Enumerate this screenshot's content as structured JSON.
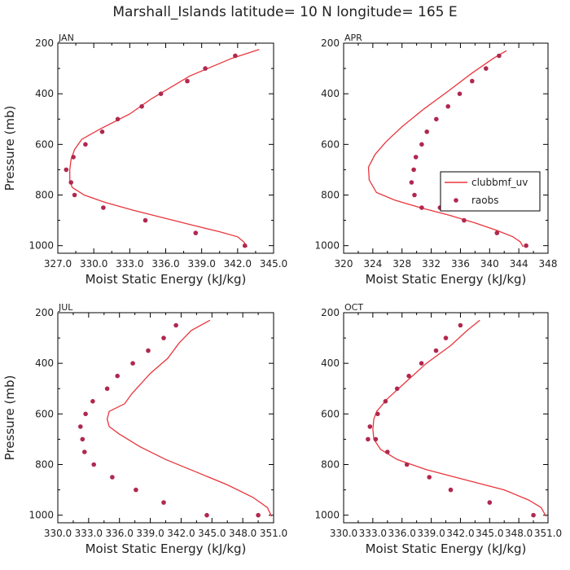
{
  "title": "Marshall_Islands  latitude= 10 N longitude= 165 E",
  "colors": {
    "line": "#e8363d",
    "marker": "#b0284f",
    "axis": "#000000"
  },
  "legend": {
    "line_label": "clubbmf_uv",
    "marker_label": "raobs",
    "placement": "center-right of APR panel"
  },
  "chart_data": [
    {
      "type": "line",
      "panel": "JAN",
      "xlabel": "Moist Static Energy (kJ/kg)",
      "ylabel": "Pressure (mb)",
      "xlim": [
        327.0,
        345.0
      ],
      "ylim": [
        1030,
        200
      ],
      "xticks": [
        "327.0",
        "330.0",
        "333.0",
        "336.0",
        "339.0",
        "342.0",
        "345.0"
      ],
      "xtick_values": [
        327,
        330,
        333,
        336,
        339,
        342,
        345
      ],
      "yticks": [
        200,
        400,
        600,
        800,
        1000
      ],
      "series": [
        {
          "name": "clubbmf_uv",
          "kind": "line",
          "x": [
            343.8,
            341.5,
            338.0,
            334.8,
            333.0,
            330.5,
            329.0,
            328.4,
            328.1,
            328.0,
            328.0,
            328.2,
            329.2,
            331.0,
            333.3,
            335.8,
            338.3,
            340.5,
            342.0,
            342.5,
            342.8
          ],
          "y": [
            225,
            260,
            330,
            420,
            480,
            540,
            580,
            620,
            660,
            700,
            740,
            770,
            800,
            830,
            860,
            890,
            920,
            945,
            965,
            985,
            1005
          ]
        },
        {
          "name": "raobs",
          "kind": "scatter",
          "x": [
            341.8,
            339.3,
            337.8,
            335.6,
            334.0,
            332.0,
            330.7,
            329.3,
            328.3,
            327.7,
            328.1,
            328.4,
            330.8,
            334.3,
            338.5,
            342.6
          ],
          "y": [
            250,
            300,
            350,
            400,
            450,
            500,
            550,
            600,
            650,
            700,
            750,
            800,
            850,
            900,
            950,
            1000
          ]
        }
      ]
    },
    {
      "type": "line",
      "panel": "APR",
      "xlabel": "Moist Static Energy (kJ/kg)",
      "ylabel": "",
      "xlim": [
        320,
        348
      ],
      "ylim": [
        1030,
        200
      ],
      "xticks": [
        "320",
        "324",
        "328",
        "332",
        "336",
        "340",
        "344",
        "348"
      ],
      "xtick_values": [
        320,
        324,
        328,
        332,
        336,
        340,
        344,
        348
      ],
      "yticks": [
        200,
        400,
        600,
        800,
        1000
      ],
      "series": [
        {
          "name": "clubbmf_uv",
          "kind": "line",
          "x": [
            342.3,
            340.5,
            337.5,
            334.3,
            331.0,
            328.0,
            325.8,
            324.3,
            323.4,
            323.5,
            324.5,
            327.0,
            330.5,
            334.5,
            338.0,
            341.0,
            343.2,
            344.2,
            344.6
          ],
          "y": [
            230,
            260,
            320,
            390,
            460,
            530,
            590,
            640,
            690,
            740,
            790,
            820,
            850,
            880,
            910,
            940,
            965,
            985,
            1005
          ]
        },
        {
          "name": "raobs",
          "kind": "scatter",
          "x": [
            341.3,
            339.5,
            337.6,
            335.9,
            334.3,
            332.7,
            331.4,
            330.7,
            329.9,
            329.6,
            329.3,
            329.7,
            330.7,
            333.2,
            336.5,
            341.0,
            345.0
          ],
          "y": [
            250,
            300,
            350,
            400,
            450,
            500,
            550,
            600,
            650,
            700,
            750,
            800,
            850,
            850,
            900,
            950,
            1000
          ]
        }
      ]
    },
    {
      "type": "line",
      "panel": "JUL",
      "xlabel": "Moist Static Energy (kJ/kg)",
      "ylabel": "Pressure (mb)",
      "xlim": [
        330.0,
        351.0
      ],
      "ylim": [
        1030,
        200
      ],
      "xticks": [
        "330.0",
        "333.0",
        "336.0",
        "339.0",
        "342.0",
        "345.0",
        "348.0",
        "351.0"
      ],
      "xtick_values": [
        330,
        333,
        336,
        339,
        342,
        345,
        348,
        351
      ],
      "yticks": [
        200,
        400,
        600,
        800,
        1000
      ],
      "series": [
        {
          "name": "clubbmf_uv",
          "kind": "line",
          "x": [
            344.8,
            343.0,
            341.8,
            340.7,
            339.0,
            337.2,
            336.5,
            335.0,
            334.8,
            335.0,
            336.0,
            338.0,
            340.5,
            343.5,
            346.5,
            349.0,
            350.4,
            350.8
          ],
          "y": [
            230,
            270,
            320,
            380,
            440,
            520,
            560,
            590,
            620,
            650,
            680,
            730,
            780,
            830,
            880,
            930,
            970,
            1005
          ]
        },
        {
          "name": "raobs",
          "kind": "scatter",
          "x": [
            341.5,
            340.3,
            338.8,
            337.3,
            335.8,
            334.8,
            333.4,
            332.7,
            332.2,
            332.4,
            332.6,
            333.5,
            335.3,
            337.6,
            340.3,
            344.5,
            349.5
          ],
          "y": [
            250,
            300,
            350,
            400,
            450,
            500,
            550,
            600,
            650,
            700,
            750,
            800,
            850,
            900,
            950,
            1000,
            1000
          ]
        }
      ]
    },
    {
      "type": "line",
      "panel": "OCT",
      "xlabel": "Moist Static Energy (kJ/kg)",
      "ylabel": "",
      "xlim": [
        330.0,
        351.0
      ],
      "ylim": [
        1030,
        200
      ],
      "xticks": [
        "330.0",
        "333.0",
        "336.0",
        "339.0",
        "342.0",
        "345.0",
        "348.0",
        "351.0"
      ],
      "xtick_values": [
        330,
        333,
        336,
        339,
        342,
        345,
        348,
        351
      ],
      "yticks": [
        200,
        400,
        600,
        800,
        1000
      ],
      "series": [
        {
          "name": "clubbmf_uv",
          "kind": "line",
          "x": [
            344.0,
            342.7,
            341.0,
            338.5,
            336.5,
            334.5,
            333.4,
            333.1,
            333.0,
            333.1,
            333.8,
            335.5,
            338.5,
            342.5,
            346.5,
            349.0,
            350.3,
            350.8
          ],
          "y": [
            230,
            270,
            330,
            400,
            470,
            540,
            590,
            620,
            660,
            700,
            740,
            780,
            820,
            860,
            900,
            940,
            970,
            1005
          ]
        },
        {
          "name": "raobs",
          "kind": "scatter",
          "x": [
            342.0,
            340.5,
            339.5,
            338.0,
            336.7,
            335.5,
            334.3,
            333.5,
            332.7,
            332.5,
            333.3,
            334.5,
            336.5,
            338.8,
            341.0,
            345.0,
            349.5
          ],
          "y": [
            250,
            300,
            350,
            400,
            450,
            500,
            550,
            600,
            650,
            700,
            700,
            750,
            800,
            850,
            900,
            950,
            1000
          ]
        }
      ]
    }
  ]
}
